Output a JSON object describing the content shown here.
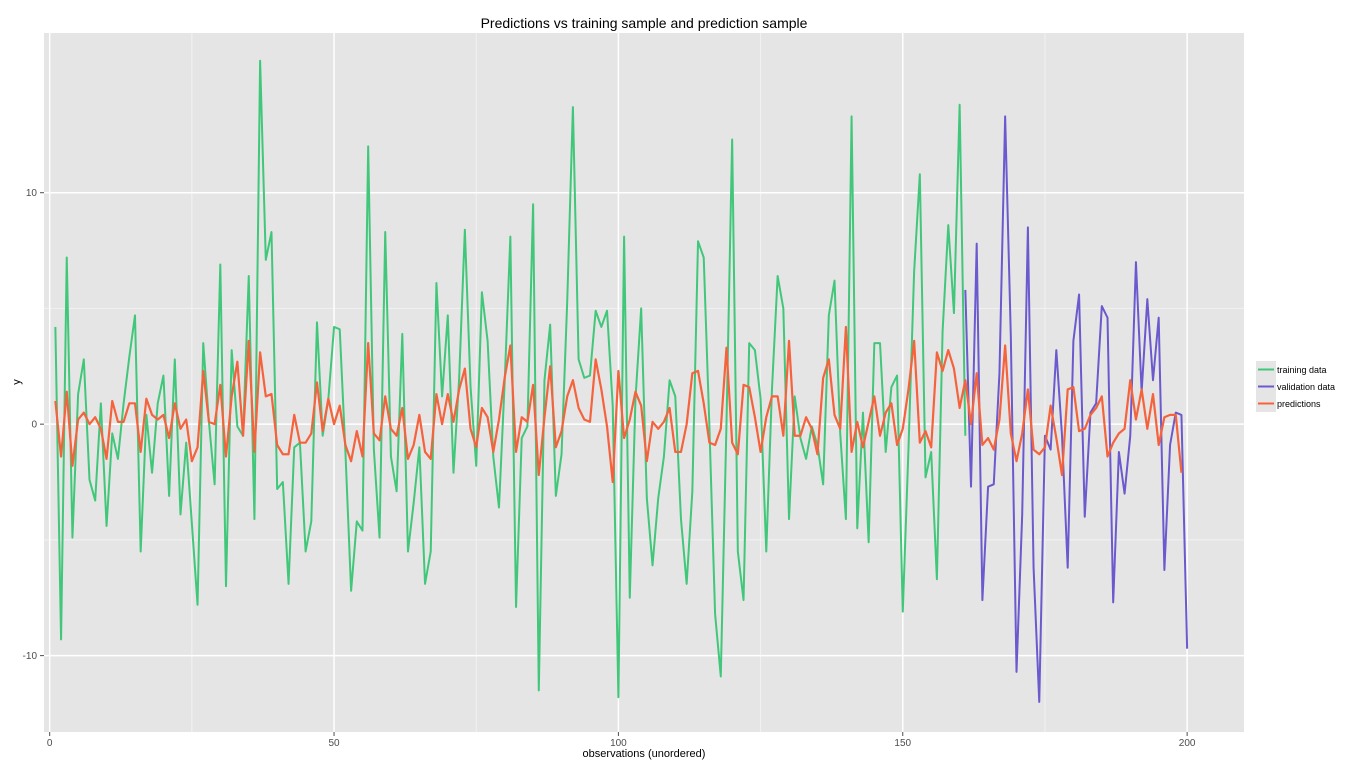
{
  "chart_data": {
    "type": "line",
    "title": "Predictions vs training sample and prediction sample",
    "xlabel": "observations (unordered)",
    "ylabel": "y",
    "xlim": [
      -1,
      210
    ],
    "ylim": [
      -13.3,
      16.9
    ],
    "xticks": [
      "0",
      "50",
      "100",
      "150",
      "200"
    ],
    "yticks": [
      "-10",
      "0",
      "10"
    ],
    "grid": true,
    "legend_position": "right",
    "colors": {
      "panel": "#e5e5e5",
      "grid_major": "#ffffff",
      "grid_minor": "#f2f2f2",
      "training": "#41c77a",
      "validation": "#6a5acd",
      "predictions": "#f5633d",
      "ticks": "#4d4d4d"
    },
    "legend": {
      "training_label": "training data",
      "validation_label": "validation data",
      "predictions_label": "predictions"
    },
    "series": [
      {
        "name": "training data",
        "x_start": 1,
        "values": [
          4.2,
          -9.3,
          7.2,
          -4.9,
          1.3,
          2.8,
          -2.4,
          -3.3,
          0.9,
          -4.4,
          -0.4,
          -1.5,
          0.9,
          2.9,
          4.7,
          -5.5,
          0.4,
          -2.1,
          0.9,
          2.1,
          -3.1,
          2.8,
          -3.9,
          -0.8,
          -4.3,
          -7.8,
          3.5,
          0.1,
          -2.6,
          6.9,
          -7,
          3.2,
          -0.1,
          -0.5,
          6.4,
          -4.1,
          15.7,
          7.1,
          8.3,
          -2.8,
          -2.5,
          -6.9,
          -1,
          -0.8,
          -5.5,
          -4.2,
          4.4,
          -0.5,
          1.1,
          4.2,
          4.1,
          -1.2,
          -7.2,
          -4.2,
          -4.6,
          12,
          -1.1,
          -4.9,
          8.3,
          -1.4,
          -2.9,
          3.9,
          -5.5,
          -3.4,
          -1,
          -6.9,
          -5.5,
          6.1,
          1.2,
          4.7,
          -2.1,
          2,
          8.4,
          1.6,
          -1.8,
          5.7,
          3.6,
          -1.4,
          -3.6,
          1.8,
          8.1,
          -7.9,
          -0.6,
          -0.1,
          9.5,
          -11.5,
          1.9,
          4.3,
          -3.1,
          -1.3,
          5.3,
          13.7,
          2.8,
          2,
          2.1,
          4.9,
          4.2,
          4.9,
          0.8,
          -11.8,
          8.1,
          -7.5,
          1.1,
          5,
          -3.2,
          -6.1,
          -3.2,
          -1.4,
          1.9,
          1.2,
          -4.1,
          -6.9,
          -2.9,
          7.9,
          7.2,
          -0.1,
          -8.2,
          -10.9,
          0,
          12.3,
          -5.5,
          -7.6,
          3.5,
          3.2,
          1.1,
          -5.5,
          1.5,
          6.4,
          5,
          -4.1,
          1.2,
          -0.6,
          -1.5,
          -0.1,
          -0.9,
          -2.6,
          4.7,
          6.2,
          -0.4,
          -4.1,
          13.3,
          -4.5,
          0.5,
          -5.1,
          3.5,
          3.5,
          -1.2,
          1.6,
          2.1,
          -8.1,
          -1.1,
          6.6,
          10.8,
          -2.3,
          -1.2,
          -6.7,
          4,
          8.6,
          4.8,
          13.8,
          -0.5
        ]
      },
      {
        "name": "validation data",
        "x_start": 161,
        "values": [
          5.8,
          -2.7,
          7.8,
          -7.6,
          -2.7,
          -2.6,
          2.2,
          13.3,
          3.8,
          -10.7,
          -3.9,
          8.5,
          -6.2,
          -12,
          -0.5,
          -1.1,
          3.2,
          -0.5,
          -6.2,
          3.6,
          5.6,
          -4,
          0.5,
          0.9,
          5.1,
          4.6,
          -7.7,
          -1.2,
          -3,
          -0.5,
          7,
          1.4,
          5.4,
          1.9,
          4.6,
          -6.3,
          -0.9,
          0.5,
          0.4,
          -9.7
        ]
      },
      {
        "name": "predictions",
        "x_start": 1,
        "values": [
          1,
          -1.4,
          1.4,
          -1.8,
          0.2,
          0.5,
          0,
          0.3,
          -0.2,
          -1.5,
          1,
          0.1,
          0.1,
          0.9,
          0.9,
          -1.2,
          1.1,
          0.4,
          0.2,
          0.4,
          -0.6,
          0.9,
          -0.2,
          0.2,
          -1.6,
          -1,
          2.3,
          0.1,
          0,
          1.7,
          -1.4,
          1.2,
          2.7,
          -0.5,
          3.6,
          -1.2,
          3.1,
          1.2,
          1.3,
          -0.9,
          -1.3,
          -1.3,
          0.4,
          -0.8,
          -0.8,
          -0.4,
          1.8,
          -0.3,
          1.1,
          0,
          0.8,
          -0.9,
          -1.6,
          -0.3,
          -1.4,
          3.5,
          -0.4,
          -0.7,
          1.2,
          -0.2,
          -0.5,
          0.7,
          -1.5,
          -0.9,
          0.4,
          -1.2,
          -1.5,
          1.3,
          0,
          1.3,
          0.1,
          1.5,
          2.4,
          -0.2,
          -1,
          0.7,
          0.3,
          -1.2,
          0.2,
          2,
          3.4,
          -1.2,
          0.3,
          0.1,
          1.7,
          -2.2,
          0.3,
          2.5,
          -1,
          -0.3,
          1.2,
          1.9,
          0.7,
          0.2,
          0.1,
          2.8,
          1.5,
          -0.1,
          -2.5,
          2.3,
          -0.6,
          0.2,
          1.4,
          0.8,
          -1.6,
          0.1,
          -0.2,
          0.1,
          0.7,
          -1.2,
          -1.2,
          0,
          2.2,
          2.3,
          0.9,
          -0.8,
          -0.9,
          -0.2,
          3.3,
          -0.8,
          -1.3,
          1.7,
          1.6,
          0.3,
          -1.2,
          0.3,
          1.2,
          1.2,
          -0.5,
          3.6,
          -0.5,
          -0.5,
          0.3,
          -0.2,
          -1.3,
          2,
          2.8,
          0.4,
          -0.2,
          4.2,
          -1.2,
          0.1,
          -1,
          0.1,
          1.2,
          -0.5,
          0.5,
          0.9,
          -0.9,
          -0.2,
          1.5,
          3.6,
          -0.8,
          -0.3,
          -1,
          3.1,
          2.3,
          3.2,
          2.4,
          0.7,
          1.9,
          0,
          2.2,
          -0.9,
          -0.6,
          -1.1,
          0.2,
          3.4,
          -0.4,
          -1.6,
          -0.4,
          1.5,
          -1.1,
          -1.3,
          -1,
          0.8,
          -0.6,
          -2.2,
          1.5,
          1.6,
          -0.3,
          -0.2,
          0.4,
          0.7,
          1.2,
          -1.4,
          -0.8,
          -0.4,
          -0.2,
          1.9,
          0.2,
          1.5,
          -0.2,
          1.3,
          -0.9,
          0.3,
          0.4,
          0.4,
          -2.1
        ]
      }
    ]
  }
}
